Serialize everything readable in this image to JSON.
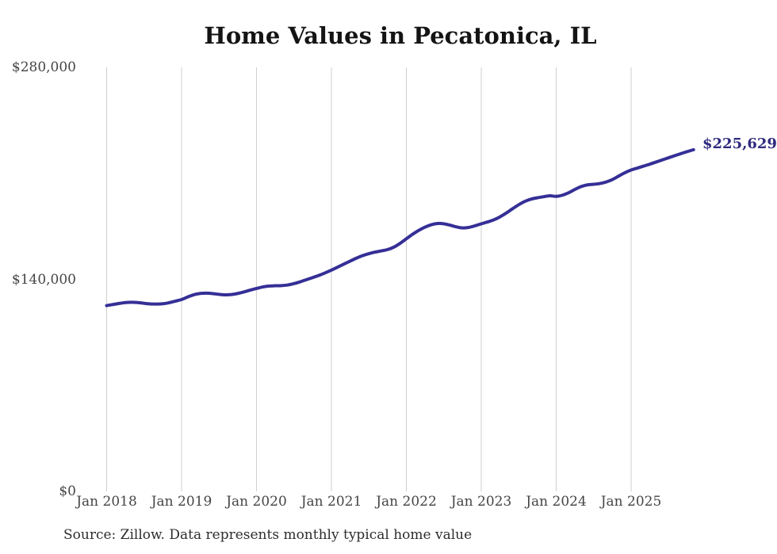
{
  "title": "Home Values in Pecatonica, IL",
  "source_note": "Source: Zillow. Data represents monthly typical home value",
  "end_label": "$225,629",
  "colors": {
    "line": "#352f96",
    "end_label": "#2e2a7d",
    "grid": "#cfcfcf",
    "title_text": "#141414",
    "tick_text": "#454545",
    "source_text": "#2d2d2d",
    "background": "#ffffff"
  },
  "chart_data": {
    "type": "line",
    "title": "Home Values in Pecatonica, IL",
    "xlabel": "",
    "ylabel": "",
    "x_unit": "month",
    "x_start": "Jan 2018",
    "x_end": "Nov 2025",
    "ylim": [
      0,
      280000
    ],
    "grid": "vertical-only",
    "legend": "none",
    "y_ticks": [
      {
        "value": 0,
        "label": "$0"
      },
      {
        "value": 140000,
        "label": "$140,000"
      },
      {
        "value": 280000,
        "label": "$280,000"
      }
    ],
    "x_ticks": [
      {
        "month_index": 0,
        "label": "Jan 2018"
      },
      {
        "month_index": 12,
        "label": "Jan 2019"
      },
      {
        "month_index": 24,
        "label": "Jan 2020"
      },
      {
        "month_index": 36,
        "label": "Jan 2021"
      },
      {
        "month_index": 48,
        "label": "Jan 2022"
      },
      {
        "month_index": 60,
        "label": "Jan 2023"
      },
      {
        "month_index": 72,
        "label": "Jan 2024"
      },
      {
        "month_index": 84,
        "label": "Jan 2025"
      }
    ],
    "series": [
      {
        "name": "Monthly typical home value",
        "latest_value": 225629,
        "values": [
          122700,
          123400,
          124100,
          124700,
          124900,
          124700,
          124200,
          123800,
          123700,
          123900,
          124600,
          125600,
          126700,
          128400,
          129900,
          130700,
          130900,
          130600,
          130100,
          129800,
          130000,
          130700,
          131700,
          132900,
          134000,
          135000,
          135600,
          135800,
          135900,
          136300,
          137200,
          138400,
          139800,
          141200,
          142600,
          144300,
          146100,
          148100,
          150100,
          152100,
          154000,
          155700,
          157000,
          158000,
          158800,
          159700,
          161300,
          163800,
          166800,
          169800,
          172400,
          174500,
          176100,
          176900,
          176700,
          175800,
          174700,
          174000,
          174300,
          175400,
          176700,
          177900,
          179300,
          181300,
          183800,
          186600,
          189300,
          191500,
          193000,
          193900,
          194600,
          195200,
          194800,
          195600,
          197200,
          199400,
          201300,
          202400,
          202800,
          203300,
          204300,
          205900,
          208200,
          210400,
          212200,
          213500,
          214800,
          216100,
          217500,
          218900,
          220300,
          221700,
          223100,
          224400,
          225629
        ]
      }
    ]
  }
}
